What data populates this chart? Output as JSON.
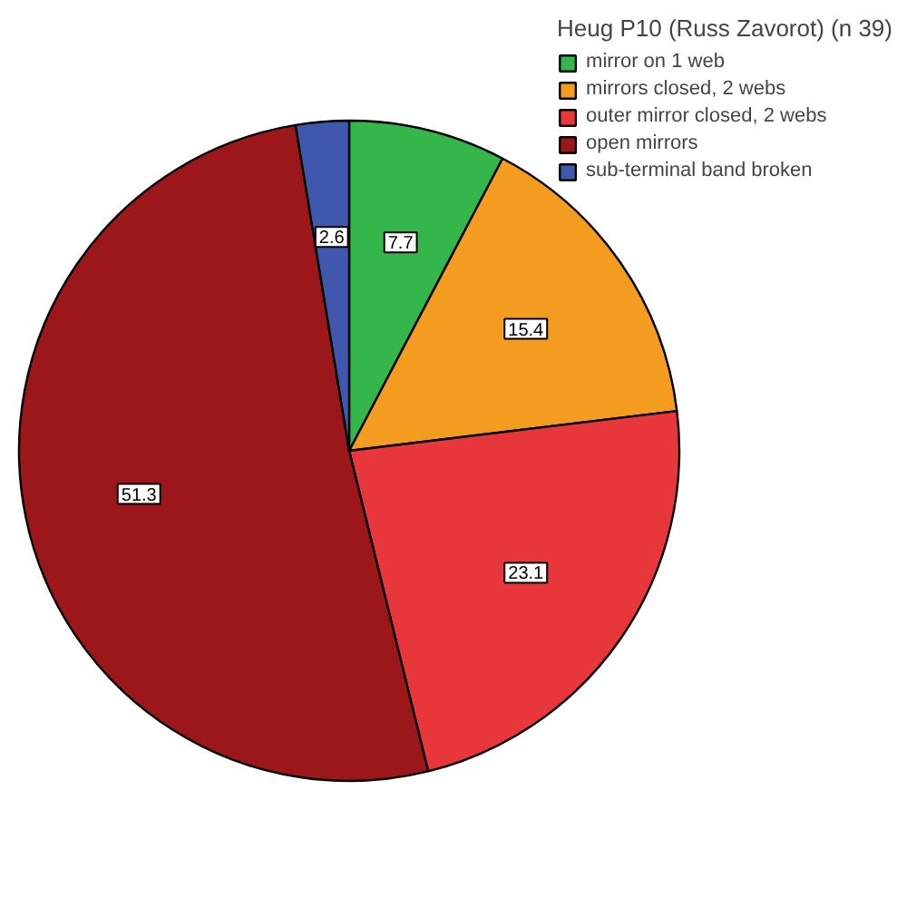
{
  "chart_data": {
    "type": "pie",
    "legend_title": "Heug P10 (Russ Zavorot) (n 39)",
    "categories": [
      "mirror on 1 web",
      "mirrors closed, 2 webs",
      "outer mirror closed, 2 webs",
      "open mirrors",
      "sub-terminal band broken"
    ],
    "values": [
      7.7,
      15.4,
      23.1,
      51.3,
      2.6
    ],
    "colors": [
      "#35b64a",
      "#f39c1f",
      "#e8373a",
      "#9b171a",
      "#3f58ad"
    ],
    "data_labels": true,
    "legend": "top right"
  }
}
